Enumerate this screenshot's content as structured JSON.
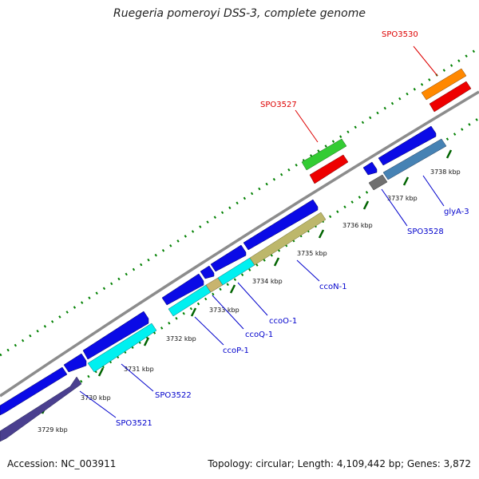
{
  "title": "Ruegeria pomeroyi DSS-3, complete genome",
  "accession_label": "Accession: NC_003911",
  "topology_label": "Topology: circular; Length: 4,109,442 bp; Genes: 3,872",
  "colors": {
    "blue": "#0a0ae6",
    "cyan": "#00f0f0",
    "khaki": "#bdb76b",
    "tan": "#c8b46e",
    "indigo": "#4a3f8f",
    "steel": "#4682b4",
    "gray": "#707070",
    "green": "#33cc33",
    "red": "#ee0000",
    "orange": "#ff8800",
    "dots": "#008000",
    "backbone": "#8c8c8c",
    "label_blue": "#0000cc",
    "label_red": "#dd0000"
  },
  "ticks": [
    "3729 kbp",
    "3730 kbp",
    "3731 kbp",
    "3732 kbp",
    "3733 kbp",
    "3734 kbp",
    "3735 kbp",
    "3736 kbp",
    "3737 kbp",
    "3738 kbp"
  ],
  "gene_labels": {
    "spo3530": "SPO3530",
    "spo3527": "SPO3527",
    "glya3": "glyA-3",
    "spo3528": "SPO3528",
    "cccon1": "ccoN-1",
    "ccoo1": "ccoO-1",
    "ccoq1": "ccoQ-1",
    "ccop1": "ccoP-1",
    "spo3522": "SPO3522",
    "spo3521": "SPO3521"
  }
}
